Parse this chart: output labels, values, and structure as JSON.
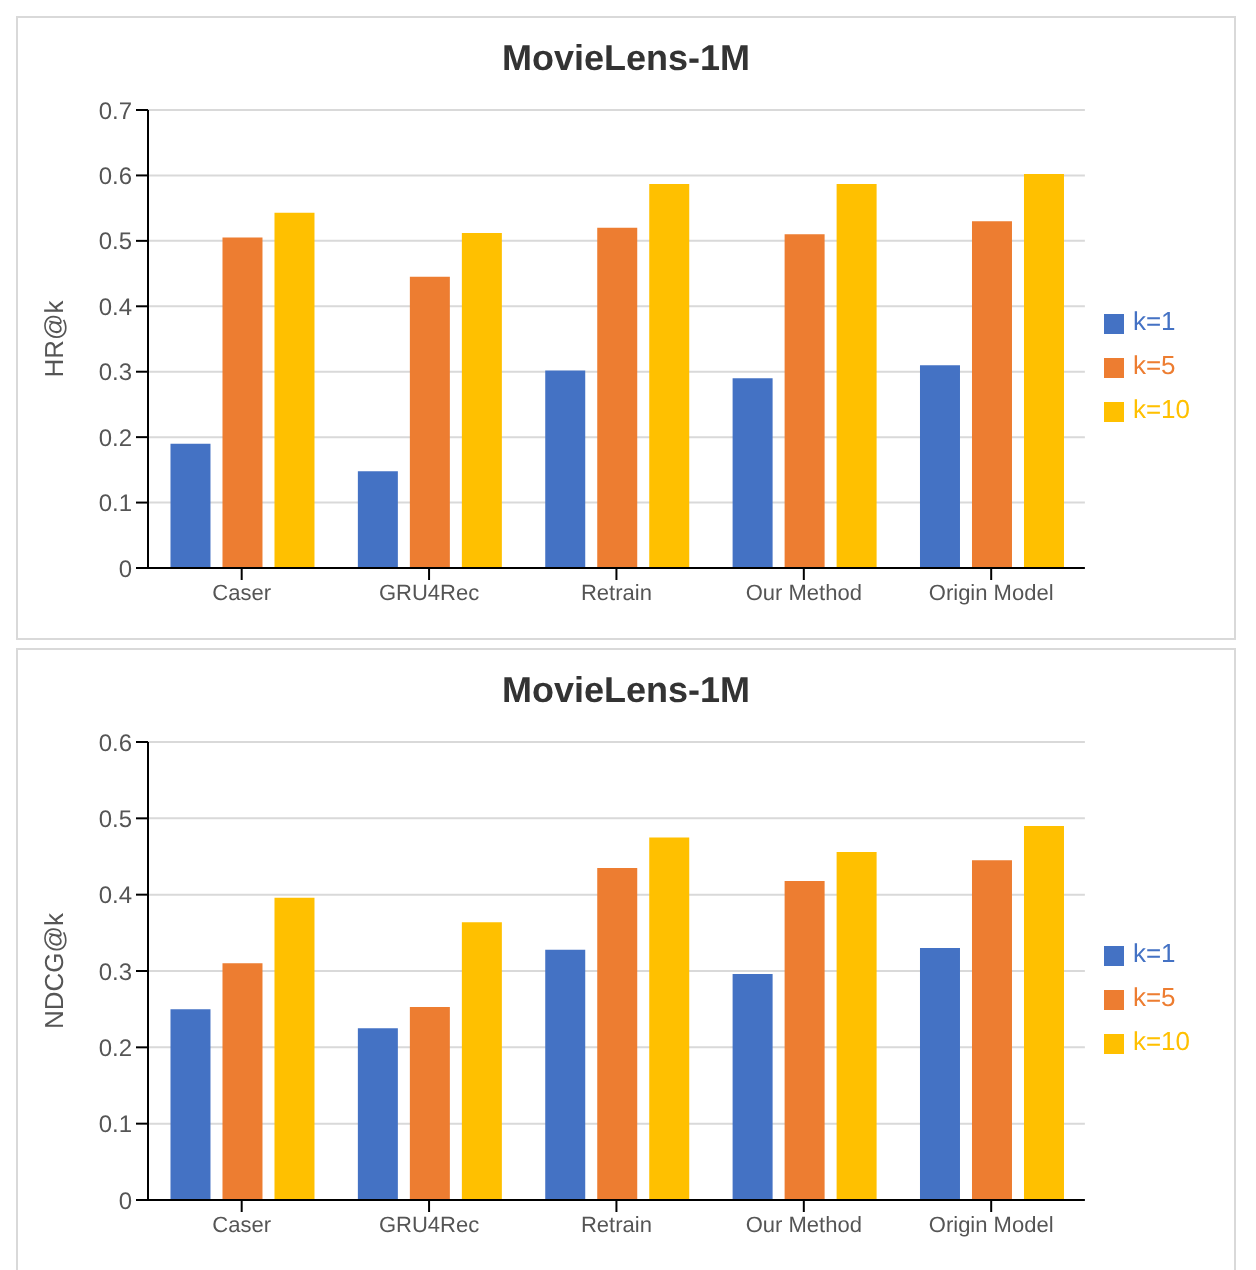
{
  "chart_data": [
    {
      "type": "bar",
      "title": "MovieLens-1M",
      "ylabel": "HR@k",
      "categories": [
        "Caser",
        "GRU4Rec",
        "Retrain",
        "Our Method",
        "Origin Model"
      ],
      "series": [
        {
          "name": "k=1",
          "color": "#4472c4",
          "values": [
            0.19,
            0.148,
            0.302,
            0.29,
            0.31
          ]
        },
        {
          "name": "k=5",
          "color": "#ed7d31",
          "values": [
            0.505,
            0.445,
            0.52,
            0.51,
            0.53
          ]
        },
        {
          "name": "k=10",
          "color": "#ffc000",
          "values": [
            0.543,
            0.512,
            0.587,
            0.587,
            0.602
          ]
        }
      ],
      "ylim": [
        0,
        0.7
      ],
      "yticks": [
        0,
        0.1,
        0.2,
        0.3,
        0.4,
        0.5,
        0.6,
        0.7
      ],
      "grid": "y",
      "legend": "right"
    },
    {
      "type": "bar",
      "title": "MovieLens-1M",
      "ylabel": "NDCG@k",
      "categories": [
        "Caser",
        "GRU4Rec",
        "Retrain",
        "Our Method",
        "Origin Model"
      ],
      "series": [
        {
          "name": "k=1",
          "color": "#4472c4",
          "values": [
            0.25,
            0.225,
            0.328,
            0.296,
            0.33
          ]
        },
        {
          "name": "k=5",
          "color": "#ed7d31",
          "values": [
            0.31,
            0.253,
            0.435,
            0.418,
            0.445
          ]
        },
        {
          "name": "k=10",
          "color": "#ffc000",
          "values": [
            0.396,
            0.364,
            0.475,
            0.456,
            0.49
          ]
        }
      ],
      "ylim": [
        0,
        0.6
      ],
      "yticks": [
        0,
        0.1,
        0.2,
        0.3,
        0.4,
        0.5,
        0.6
      ],
      "grid": "y",
      "legend": "right"
    }
  ]
}
